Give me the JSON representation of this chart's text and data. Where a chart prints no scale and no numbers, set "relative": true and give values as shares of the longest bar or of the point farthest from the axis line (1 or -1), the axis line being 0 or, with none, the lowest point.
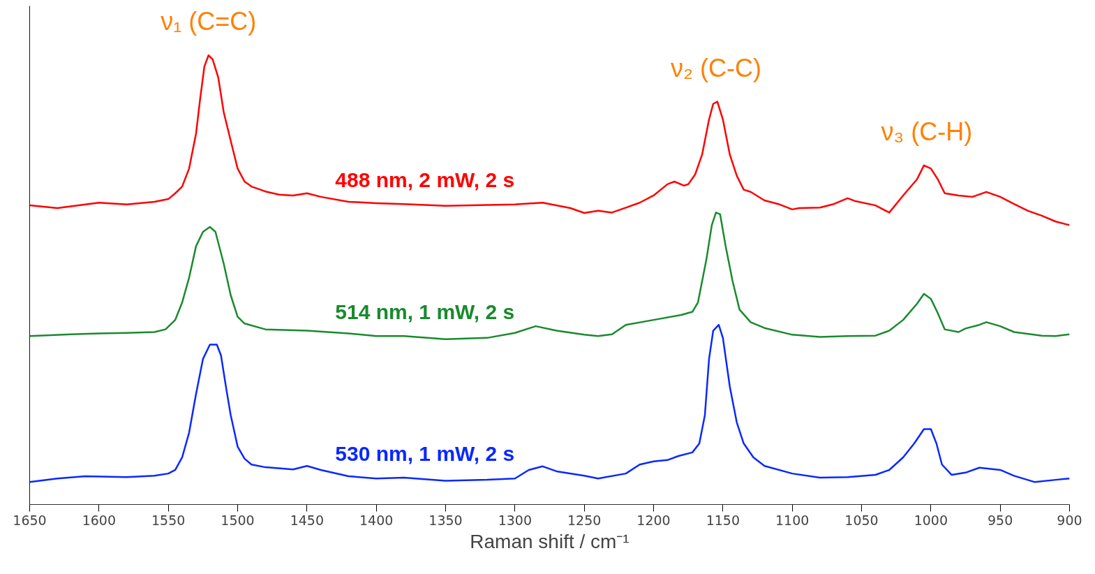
{
  "chart_data": {
    "type": "line",
    "relative": true,
    "xlabel": "Raman shift / cm⁻¹",
    "xlim": [
      1650,
      900
    ],
    "xticks": [
      1650,
      1600,
      1550,
      1500,
      1450,
      1400,
      1350,
      1300,
      1250,
      1200,
      1150,
      1100,
      1050,
      1000,
      950,
      900
    ],
    "annotations": [
      {
        "text": "ν₁ (C=C)",
        "x": 1521,
        "y": 1.0
      },
      {
        "text": "ν₂ (C-C)",
        "x": 1155,
        "y": 0.897
      },
      {
        "text": "ν₃ (C-H)",
        "x": 1003,
        "y": 0.755
      }
    ],
    "series": [
      {
        "name": "488 nm, 2 mW, 2 s",
        "color": "#ff0000",
        "x": [
          1650,
          1630,
          1600,
          1580,
          1560,
          1550,
          1545,
          1540,
          1535,
          1530,
          1527,
          1524,
          1521,
          1518,
          1514,
          1510,
          1505,
          1500,
          1495,
          1490,
          1480,
          1470,
          1460,
          1450,
          1440,
          1420,
          1400,
          1380,
          1350,
          1300,
          1280,
          1260,
          1250,
          1240,
          1230,
          1220,
          1210,
          1200,
          1190,
          1185,
          1178,
          1175,
          1170,
          1165,
          1160,
          1157,
          1154,
          1150,
          1145,
          1140,
          1135,
          1130,
          1120,
          1110,
          1100,
          1095,
          1080,
          1070,
          1060,
          1055,
          1040,
          1030,
          1020,
          1010,
          1005,
          1000,
          995,
          990,
          980,
          970,
          960,
          950,
          940,
          930,
          920,
          910,
          900
        ],
        "values": [
          0.666,
          0.66,
          0.672,
          0.668,
          0.674,
          0.68,
          0.693,
          0.708,
          0.748,
          0.826,
          0.904,
          0.975,
          1.0,
          0.991,
          0.951,
          0.873,
          0.81,
          0.748,
          0.719,
          0.708,
          0.697,
          0.69,
          0.688,
          0.693,
          0.685,
          0.674,
          0.671,
          0.669,
          0.665,
          0.668,
          0.672,
          0.66,
          0.649,
          0.654,
          0.65,
          0.661,
          0.672,
          0.688,
          0.713,
          0.719,
          0.71,
          0.713,
          0.735,
          0.779,
          0.857,
          0.892,
          0.897,
          0.857,
          0.779,
          0.732,
          0.701,
          0.696,
          0.677,
          0.669,
          0.657,
          0.66,
          0.661,
          0.669,
          0.682,
          0.676,
          0.666,
          0.65,
          0.688,
          0.724,
          0.755,
          0.748,
          0.724,
          0.693,
          0.688,
          0.685,
          0.696,
          0.685,
          0.669,
          0.654,
          0.643,
          0.63,
          0.622
        ]
      },
      {
        "name": "514 nm, 1 mW, 2 s",
        "color": "#1a8a2e",
        "x": [
          1650,
          1620,
          1600,
          1580,
          1560,
          1552,
          1545,
          1540,
          1535,
          1530,
          1525,
          1520,
          1516,
          1510,
          1505,
          1500,
          1495,
          1480,
          1450,
          1420,
          1400,
          1380,
          1350,
          1320,
          1300,
          1285,
          1270,
          1250,
          1240,
          1230,
          1220,
          1200,
          1180,
          1172,
          1168,
          1162,
          1158,
          1155,
          1152,
          1148,
          1143,
          1138,
          1130,
          1120,
          1100,
          1080,
          1060,
          1040,
          1030,
          1020,
          1010,
          1005,
          1000,
          995,
          990,
          980,
          975,
          965,
          960,
          950,
          940,
          920,
          910,
          900
        ],
        "values": [
          0.375,
          0.379,
          0.381,
          0.382,
          0.384,
          0.39,
          0.411,
          0.45,
          0.505,
          0.575,
          0.607,
          0.618,
          0.607,
          0.536,
          0.466,
          0.418,
          0.403,
          0.39,
          0.387,
          0.381,
          0.375,
          0.375,
          0.368,
          0.371,
          0.382,
          0.397,
          0.387,
          0.378,
          0.375,
          0.379,
          0.4,
          0.411,
          0.422,
          0.429,
          0.45,
          0.544,
          0.622,
          0.65,
          0.646,
          0.575,
          0.497,
          0.434,
          0.406,
          0.393,
          0.378,
          0.373,
          0.375,
          0.376,
          0.387,
          0.411,
          0.447,
          0.469,
          0.458,
          0.426,
          0.39,
          0.384,
          0.392,
          0.4,
          0.406,
          0.397,
          0.384,
          0.376,
          0.375,
          0.379
        ]
      },
      {
        "name": "530 nm, 1 mW, 2 s",
        "color": "#0a28ff",
        "x": [
          1650,
          1630,
          1610,
          1580,
          1560,
          1550,
          1545,
          1540,
          1535,
          1530,
          1525,
          1520,
          1515,
          1512,
          1508,
          1505,
          1500,
          1495,
          1490,
          1480,
          1460,
          1450,
          1440,
          1420,
          1400,
          1380,
          1350,
          1320,
          1300,
          1290,
          1280,
          1270,
          1250,
          1240,
          1220,
          1210,
          1200,
          1190,
          1182,
          1172,
          1167,
          1163,
          1160,
          1157,
          1153,
          1150,
          1145,
          1140,
          1135,
          1128,
          1120,
          1100,
          1080,
          1060,
          1040,
          1030,
          1020,
          1012,
          1005,
          1000,
          996,
          992,
          985,
          975,
          965,
          950,
          940,
          925,
          910,
          900
        ],
        "values": [
          0.05,
          0.058,
          0.063,
          0.061,
          0.064,
          0.069,
          0.077,
          0.105,
          0.16,
          0.246,
          0.324,
          0.356,
          0.356,
          0.332,
          0.254,
          0.199,
          0.129,
          0.102,
          0.089,
          0.083,
          0.078,
          0.086,
          0.077,
          0.063,
          0.058,
          0.06,
          0.053,
          0.055,
          0.058,
          0.077,
          0.085,
          0.074,
          0.064,
          0.058,
          0.069,
          0.089,
          0.096,
          0.099,
          0.108,
          0.116,
          0.136,
          0.199,
          0.324,
          0.387,
          0.4,
          0.371,
          0.262,
          0.183,
          0.136,
          0.105,
          0.086,
          0.069,
          0.06,
          0.061,
          0.066,
          0.077,
          0.105,
          0.136,
          0.168,
          0.168,
          0.136,
          0.089,
          0.066,
          0.071,
          0.082,
          0.077,
          0.064,
          0.05,
          0.055,
          0.058
        ]
      }
    ]
  }
}
